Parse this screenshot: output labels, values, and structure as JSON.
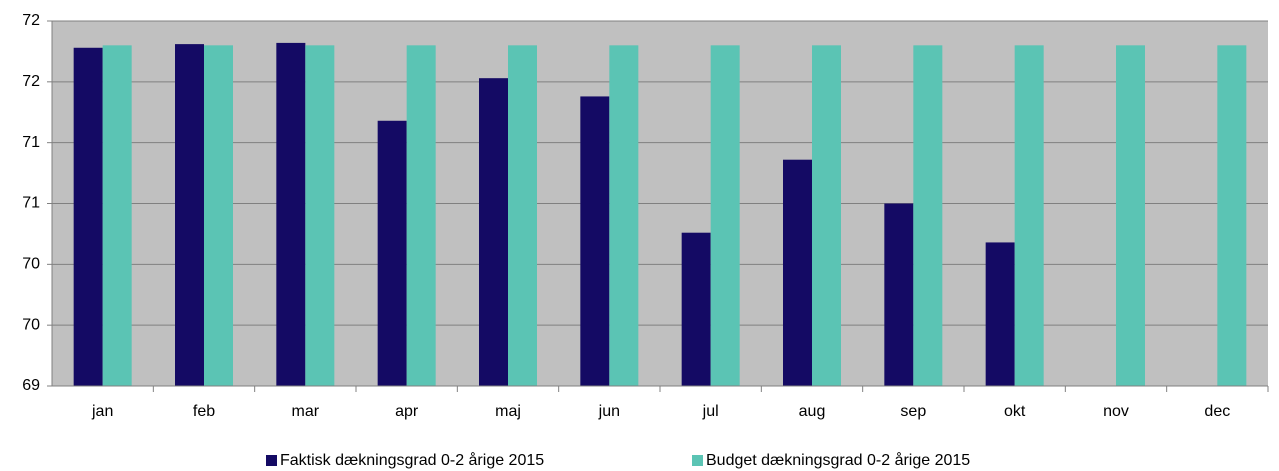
{
  "chart_data": {
    "type": "bar",
    "categories": [
      "jan",
      "feb",
      "mar",
      "apr",
      "maj",
      "jun",
      "jul",
      "aug",
      "sep",
      "okt",
      "nov",
      "dec"
    ],
    "series": [
      {
        "name": "Faktisk dækningsgrad 0-2 årige 2015",
        "color": "#140a64",
        "values": [
          71.78,
          71.81,
          71.82,
          71.18,
          71.53,
          71.38,
          70.26,
          70.86,
          70.5,
          70.18,
          null,
          null
        ]
      },
      {
        "name": "Budget dækningsgrad 0-2 årige 2015",
        "color": "#5bc4b4",
        "values": [
          71.8,
          71.8,
          71.8,
          71.8,
          71.8,
          71.8,
          71.8,
          71.8,
          71.8,
          71.8,
          71.8,
          71.8
        ]
      }
    ],
    "ylim": [
      69,
      72
    ],
    "yticks": [
      69,
      {
        "value": 69.5,
        "label": "70"
      },
      70,
      {
        "value": 70.5,
        "label": "71"
      },
      71,
      {
        "value": 71.5,
        "label": "72"
      },
      72
    ],
    "grid": true,
    "legend": "bottom"
  }
}
